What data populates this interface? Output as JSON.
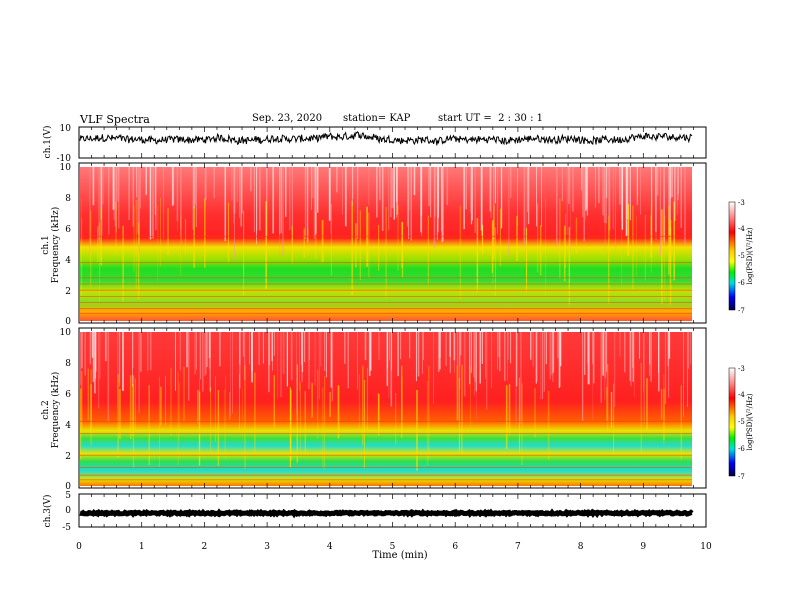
{
  "header": {
    "title": "VLF Spectra",
    "date": "Sep. 23, 2020",
    "station": "station= KAP",
    "start_ut": "start UT =  2 : 30 : 1"
  },
  "colors": {
    "spectrogram_high": "#ff2a2a",
    "spectrogram_mid_yellow": "#f2f200",
    "spectrogram_mid_green": "#22dd22",
    "spectrogram_low_cyan": "#22ddcc",
    "waveform": "#000000"
  },
  "chart_data": [
    {
      "type": "line",
      "name": "ch1-waveform",
      "ylabel": "ch.1(V)",
      "ylim": [
        -10,
        10
      ],
      "yticks": [
        "10",
        "-10"
      ],
      "xlim": [
        0,
        10
      ],
      "mean": 2,
      "amplitude": 3
    },
    {
      "type": "heatmap",
      "name": "ch1-spectrogram",
      "ylabel_line1": "ch.1",
      "ylabel_line2": "Frequency (kHz)",
      "ylim": [
        0,
        10
      ],
      "yticks": [
        "0",
        "2",
        "4",
        "6",
        "8",
        "10"
      ],
      "xlim": [
        0,
        9.8
      ],
      "bands_khz": [
        {
          "from": 0,
          "to": 0.8,
          "level": "mixed"
        },
        {
          "from": 0.8,
          "to": 2.5,
          "level": "green-yellow"
        },
        {
          "from": 2.5,
          "to": 3.7,
          "level": "green"
        },
        {
          "from": 3.7,
          "to": 5.2,
          "level": "yellow-green"
        },
        {
          "from": 5.2,
          "to": 10,
          "level": "red-white"
        }
      ],
      "colorbar": {
        "label": "log(PSD)(V²/Hz)",
        "ticks": [
          "-3",
          "-4",
          "-5",
          "-6",
          "-7"
        ],
        "range": [
          -7,
          -3
        ]
      }
    },
    {
      "type": "heatmap",
      "name": "ch2-spectrogram",
      "ylabel_line1": "ch.2",
      "ylabel_line2": "Frequency (kHz)",
      "ylim": [
        0,
        10
      ],
      "yticks": [
        "0",
        "2",
        "4",
        "6",
        "8",
        "10"
      ],
      "xlim": [
        0,
        9.8
      ],
      "bands_khz": [
        {
          "from": 0,
          "to": 0.5,
          "level": "yellow-green"
        },
        {
          "from": 0.5,
          "to": 1.8,
          "level": "green-cyan"
        },
        {
          "from": 1.8,
          "to": 2.3,
          "level": "yellow"
        },
        {
          "from": 2.3,
          "to": 3.5,
          "level": "green-cyan"
        },
        {
          "from": 3.5,
          "to": 5.0,
          "level": "yellow-red"
        },
        {
          "from": 5.0,
          "to": 10,
          "level": "red"
        }
      ],
      "colorbar": {
        "label": "log(PSD)(V²/Hz)",
        "ticks": [
          "-3",
          "-4",
          "-5",
          "-6",
          "-7"
        ],
        "range": [
          -7,
          -3
        ]
      }
    },
    {
      "type": "line",
      "name": "ch3-waveform",
      "ylabel": "ch.3(V)",
      "ylim": [
        -5,
        5
      ],
      "yticks": [
        "5",
        "0",
        "-5"
      ],
      "xlim": [
        0,
        10
      ],
      "mean": -0.8,
      "amplitude": 0.25,
      "xlabel": "Time (min)",
      "xticks": [
        "0",
        "1",
        "2",
        "3",
        "4",
        "5",
        "6",
        "7",
        "8",
        "9",
        "10"
      ]
    }
  ]
}
